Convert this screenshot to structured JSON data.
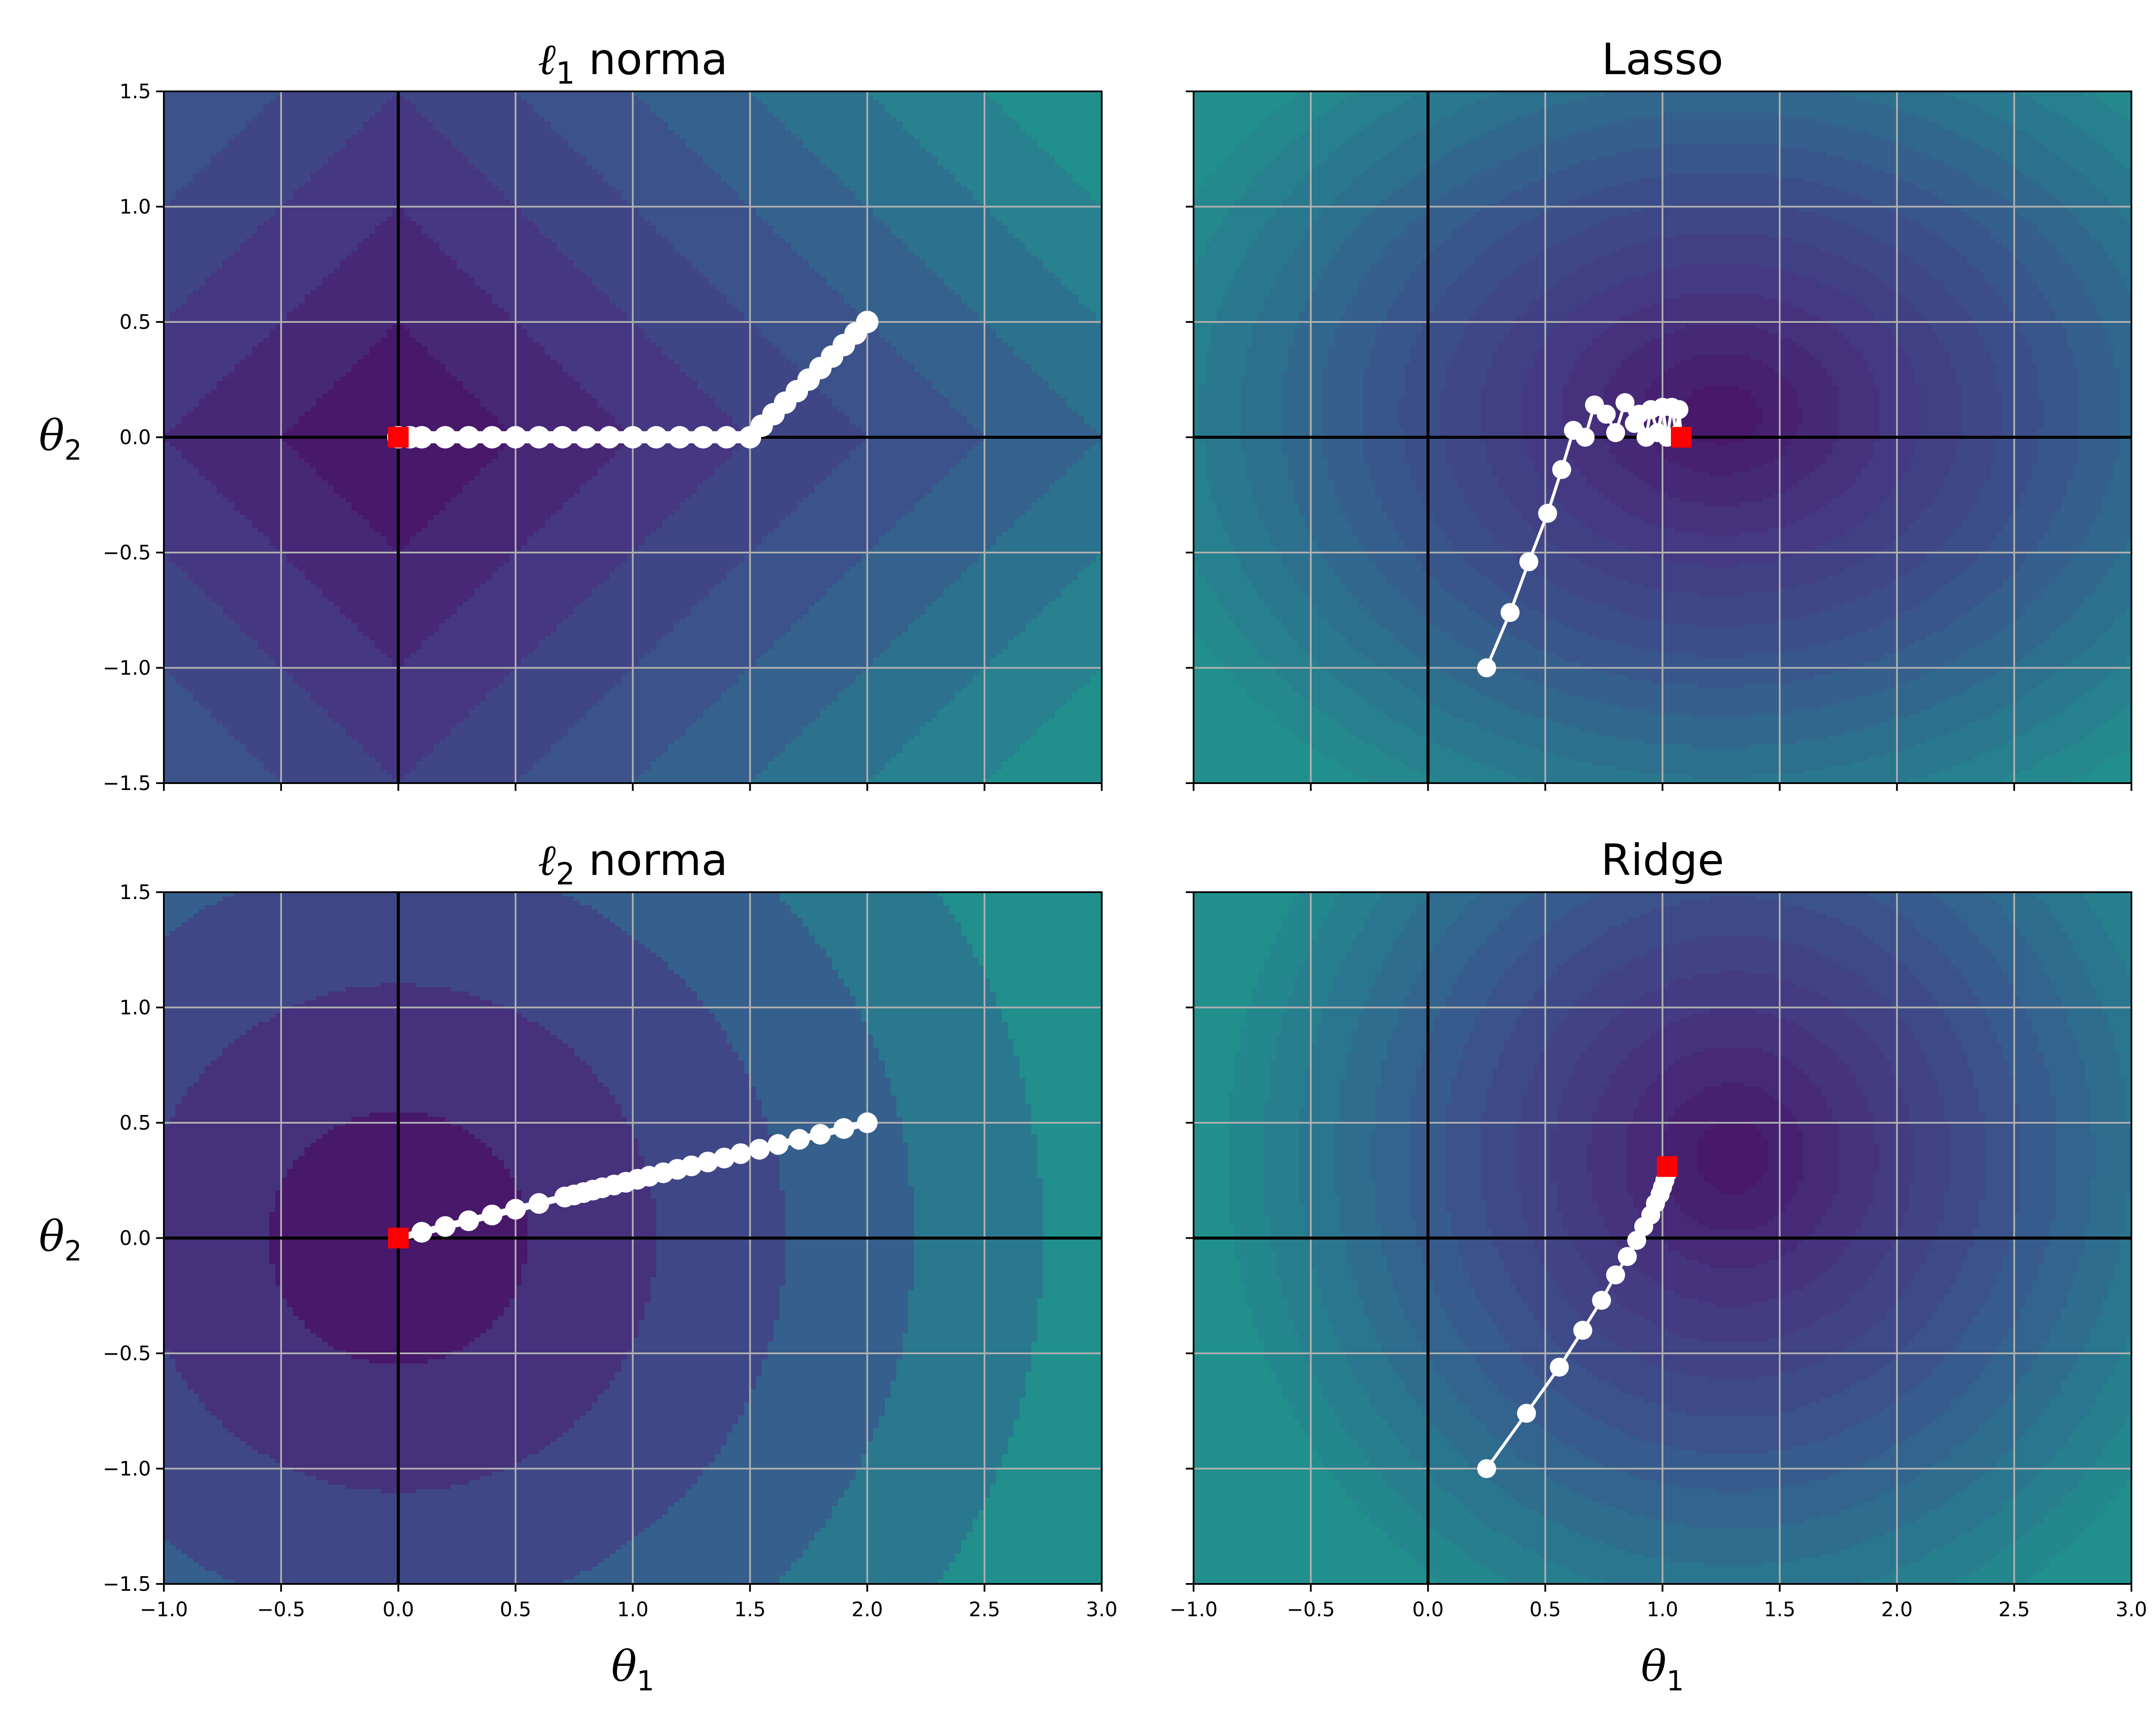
{
  "figure": {
    "x_axis_label": "θ₁",
    "y_axis_label": "θ₂"
  },
  "colors": {
    "contour_low": "#48186a",
    "contour_mid": "#3b528b",
    "contour_high": "#21908d",
    "path": "#ffffff",
    "optimum_marker": "#ff0000",
    "axes_lines": "#000000",
    "grid": "#b0b0b0"
  },
  "chart_data": [
    {
      "panel": "top-left",
      "type": "contour",
      "title": "ℓ1 norma",
      "title_parts": {
        "ell": "ℓ",
        "sub": "1",
        "rest": " norma"
      },
      "surface": "l1",
      "xlabel": "",
      "ylabel": "θ2",
      "xlim": [
        -1.0,
        3.0
      ],
      "ylim": [
        -1.5,
        1.5
      ],
      "xticks": [
        "−1.0",
        "−0.5",
        "0.0",
        "0.5",
        "1.0",
        "1.5",
        "2.0",
        "2.5",
        "3.0"
      ],
      "yticks": [
        "−1.5",
        "−1.0",
        "−0.5",
        "0.0",
        "0.5",
        "1.0",
        "1.5"
      ],
      "show_xtick_labels": false,
      "show_ytick_labels": true,
      "grid": true,
      "path_style": "thick",
      "path": [
        [
          2.0,
          0.5
        ],
        [
          1.95,
          0.45
        ],
        [
          1.9,
          0.4
        ],
        [
          1.85,
          0.35
        ],
        [
          1.8,
          0.3
        ],
        [
          1.75,
          0.25
        ],
        [
          1.7,
          0.2
        ],
        [
          1.65,
          0.15
        ],
        [
          1.6,
          0.1
        ],
        [
          1.55,
          0.05
        ],
        [
          1.5,
          0.0
        ],
        [
          1.4,
          0.0
        ],
        [
          1.3,
          0.0
        ],
        [
          1.2,
          0.0
        ],
        [
          1.1,
          0.0
        ],
        [
          1.0,
          0.0
        ],
        [
          0.9,
          0.0
        ],
        [
          0.8,
          0.0
        ],
        [
          0.7,
          0.0
        ],
        [
          0.6,
          0.0
        ],
        [
          0.5,
          0.0
        ],
        [
          0.4,
          0.0
        ],
        [
          0.3,
          0.0
        ],
        [
          0.2,
          0.0
        ],
        [
          0.1,
          0.0
        ],
        [
          0.05,
          0.0
        ],
        [
          0.0,
          0.0
        ]
      ],
      "optimum": [
        0.0,
        0.0
      ]
    },
    {
      "panel": "top-right",
      "type": "contour",
      "title": "Lasso",
      "surface": "lasso",
      "xlabel": "",
      "ylabel": "",
      "xlim": [
        -1.0,
        3.0
      ],
      "ylim": [
        -1.5,
        1.5
      ],
      "xticks": [
        "−1.0",
        "−0.5",
        "0.0",
        "0.5",
        "1.0",
        "1.5",
        "2.0",
        "2.5",
        "3.0"
      ],
      "yticks": [
        "−1.5",
        "−1.0",
        "−0.5",
        "0.0",
        "0.5",
        "1.0",
        "1.5"
      ],
      "show_xtick_labels": false,
      "show_ytick_labels": false,
      "grid": true,
      "path_style": "thin",
      "path": [
        [
          0.25,
          -1.0
        ],
        [
          0.35,
          -0.76
        ],
        [
          0.43,
          -0.54
        ],
        [
          0.51,
          -0.33
        ],
        [
          0.57,
          -0.14
        ],
        [
          0.62,
          0.03
        ],
        [
          0.67,
          0.0
        ],
        [
          0.71,
          0.14
        ],
        [
          0.76,
          0.1
        ],
        [
          0.8,
          0.02
        ],
        [
          0.84,
          0.15
        ],
        [
          0.88,
          0.06
        ],
        [
          0.9,
          0.1
        ],
        [
          0.93,
          0.0
        ],
        [
          0.95,
          0.12
        ],
        [
          0.98,
          0.02
        ],
        [
          1.0,
          0.13
        ],
        [
          1.02,
          0.0
        ],
        [
          1.04,
          0.13
        ],
        [
          1.06,
          0.01
        ],
        [
          1.07,
          0.12
        ],
        [
          1.08,
          0.0
        ]
      ],
      "optimum": [
        1.08,
        0.0
      ]
    },
    {
      "panel": "bottom-left",
      "type": "contour",
      "title": "ℓ2 norma",
      "title_parts": {
        "ell": "ℓ",
        "sub": "2",
        "rest": " norma"
      },
      "surface": "l2",
      "xlabel": "θ1",
      "ylabel": "θ2",
      "xlim": [
        -1.0,
        3.0
      ],
      "ylim": [
        -1.5,
        1.5
      ],
      "xticks": [
        "−1.0",
        "−0.5",
        "0.0",
        "0.5",
        "1.0",
        "1.5",
        "2.0",
        "2.5",
        "3.0"
      ],
      "yticks": [
        "−1.5",
        "−1.0",
        "−0.5",
        "0.0",
        "0.5",
        "1.0",
        "1.5"
      ],
      "show_xtick_labels": true,
      "show_ytick_labels": true,
      "grid": true,
      "path_style": "medium",
      "path": [
        [
          2.0,
          0.5
        ],
        [
          1.9,
          0.475
        ],
        [
          1.8,
          0.45
        ],
        [
          1.71,
          0.428
        ],
        [
          1.62,
          0.406
        ],
        [
          1.54,
          0.385
        ],
        [
          1.46,
          0.366
        ],
        [
          1.39,
          0.347
        ],
        [
          1.32,
          0.33
        ],
        [
          1.25,
          0.313
        ],
        [
          1.19,
          0.298
        ],
        [
          1.13,
          0.283
        ],
        [
          1.07,
          0.268
        ],
        [
          1.02,
          0.255
        ],
        [
          0.97,
          0.242
        ],
        [
          0.92,
          0.23
        ],
        [
          0.87,
          0.218
        ],
        [
          0.83,
          0.208
        ],
        [
          0.79,
          0.197
        ],
        [
          0.75,
          0.187
        ],
        [
          0.71,
          0.178
        ],
        [
          0.6,
          0.15
        ],
        [
          0.5,
          0.125
        ],
        [
          0.4,
          0.1
        ],
        [
          0.3,
          0.075
        ],
        [
          0.2,
          0.05
        ],
        [
          0.1,
          0.025
        ],
        [
          0.0,
          0.0
        ]
      ],
      "optimum": [
        0.0,
        0.0
      ]
    },
    {
      "panel": "bottom-right",
      "type": "contour",
      "title": "Ridge",
      "surface": "ridge",
      "xlabel": "θ1",
      "ylabel": "",
      "xlim": [
        -1.0,
        3.0
      ],
      "ylim": [
        -1.5,
        1.5
      ],
      "xticks": [
        "−1.0",
        "−0.5",
        "0.0",
        "0.5",
        "1.0",
        "1.5",
        "2.0",
        "2.5",
        "3.0"
      ],
      "yticks": [
        "−1.5",
        "−1.0",
        "−0.5",
        "0.0",
        "0.5",
        "1.0",
        "1.5"
      ],
      "show_xtick_labels": true,
      "show_ytick_labels": false,
      "grid": true,
      "path_style": "thin",
      "path": [
        [
          0.25,
          -1.0
        ],
        [
          0.42,
          -0.76
        ],
        [
          0.56,
          -0.56
        ],
        [
          0.66,
          -0.4
        ],
        [
          0.74,
          -0.27
        ],
        [
          0.8,
          -0.16
        ],
        [
          0.85,
          -0.08
        ],
        [
          0.89,
          -0.01
        ],
        [
          0.92,
          0.05
        ],
        [
          0.95,
          0.1
        ],
        [
          0.97,
          0.15
        ],
        [
          0.99,
          0.19
        ],
        [
          1.0,
          0.22
        ],
        [
          1.01,
          0.25
        ],
        [
          1.02,
          0.28
        ]
      ],
      "optimum": [
        1.02,
        0.31
      ]
    }
  ]
}
